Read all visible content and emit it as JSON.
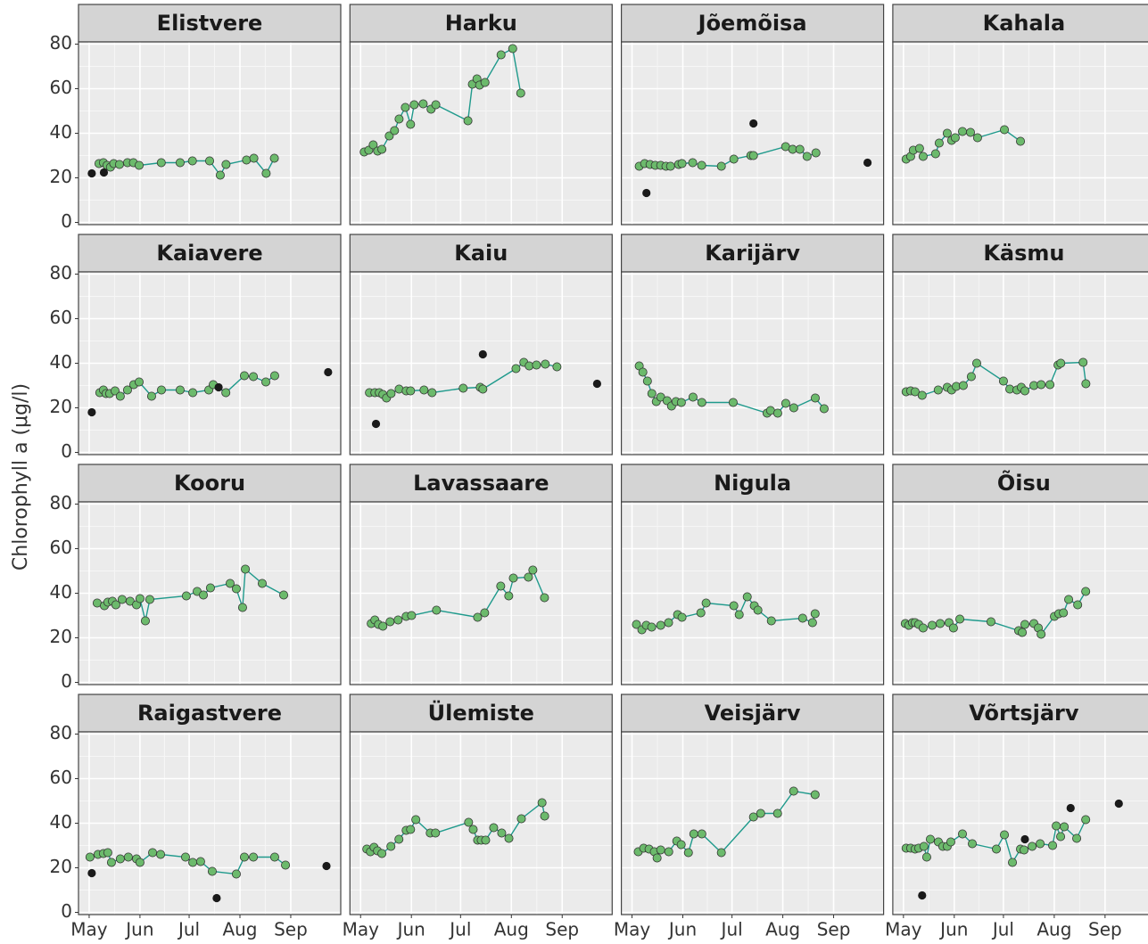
{
  "chart_data": {
    "type": "line",
    "y_label": "Chlorophyll a (μg/l)",
    "xlim": [
      114.5,
      274.5
    ],
    "xticks": [
      {
        "value": 121,
        "label": "May"
      },
      {
        "value": 152,
        "label": "Jun"
      },
      {
        "value": 182,
        "label": "Jul"
      },
      {
        "value": 213,
        "label": "Aug"
      },
      {
        "value": 244,
        "label": "Sep"
      }
    ],
    "ylim": [
      -1,
      81
    ],
    "yticks": [
      0,
      20,
      40,
      60,
      80
    ],
    "grid": true,
    "line_color": "#1f9a8c",
    "point_color": "#6cba6c",
    "outlier_color": "#1a1a1a",
    "panels": [
      {
        "title": "Elistvere",
        "x": [
          127,
          129.7,
          131.9,
          134,
          136,
          139.5,
          144.4,
          148,
          151.5,
          165,
          176.5,
          184,
          194.5,
          201,
          204.5,
          217,
          221.5,
          229,
          234
        ],
        "values": [
          26.4,
          26.8,
          25.6,
          24.8,
          26.4,
          26,
          26.8,
          26.8,
          25.6,
          26.8,
          26.8,
          27.6,
          27.6,
          21.2,
          26,
          28,
          28.8,
          22,
          28.8
        ],
        "outlier_x": [
          122.6,
          130
        ],
        "outlier_values": [
          22,
          22.4
        ]
      },
      {
        "title": "Harku",
        "x": [
          123.2,
          126,
          128.7,
          131.4,
          134,
          138.5,
          141.7,
          144.5,
          148.3,
          151.5,
          153.7,
          159.2,
          164,
          166.9,
          186.5,
          189.2,
          192,
          193.6,
          196.9,
          206.7,
          213.8,
          218.7
        ],
        "values": [
          31.6,
          32.4,
          34.8,
          32,
          32.8,
          38.8,
          41.2,
          46.4,
          51.6,
          44,
          52.8,
          53.2,
          50.8,
          52.8,
          45.6,
          62,
          64.4,
          61.6,
          62.8,
          75.2,
          78,
          58
        ],
        "outlier_x": [],
        "outlier_values": []
      },
      {
        "title": "Jõemõisa",
        "x": [
          125.4,
          128.7,
          132,
          135.2,
          138.5,
          141.7,
          144.5,
          149.4,
          151.5,
          158,
          163.5,
          175.5,
          183.1,
          193.5,
          195.1,
          214.7,
          219,
          223.4,
          227.8,
          233.2
        ],
        "values": [
          25.2,
          26.4,
          26,
          25.6,
          25.6,
          25.2,
          25.2,
          26,
          26.4,
          26.8,
          25.6,
          25.2,
          28.4,
          30,
          30,
          34,
          32.8,
          32.8,
          29.6,
          31.2
        ],
        "outlier_x": [
          129.8,
          195.1,
          264.7
        ],
        "outlier_values": [
          13.2,
          44.4,
          26.8
        ]
      },
      {
        "title": "Kahala",
        "x": [
          122.6,
          125.4,
          127,
          130.8,
          133,
          140.6,
          142.8,
          147.7,
          150.4,
          152.6,
          157,
          161.9,
          166.2,
          182.6,
          192.4
        ],
        "values": [
          28.4,
          29.6,
          32.4,
          33.2,
          29.6,
          30.8,
          35.6,
          40,
          36.8,
          38,
          40.8,
          40.4,
          38,
          41.6,
          36.4
        ],
        "outlier_x": [],
        "outlier_values": []
      },
      {
        "title": "Kaiavere",
        "x": [
          127.5,
          129.7,
          131.3,
          133.5,
          136.8,
          140,
          144.4,
          148.2,
          151.5,
          159.1,
          165.1,
          176.5,
          184.2,
          194,
          196.7,
          204.4,
          215.7,
          221.2,
          228.8,
          234.2
        ],
        "values": [
          26.8,
          28,
          26.4,
          26.4,
          27.6,
          25.2,
          28,
          30.4,
          31.6,
          25.2,
          28,
          28,
          26.8,
          28,
          30.4,
          26.8,
          34.4,
          34,
          31.6,
          34.4
        ],
        "outlier_x": [
          122.6,
          200,
          266.8
        ],
        "outlier_values": [
          18,
          29.2,
          36
        ]
      },
      {
        "title": "Kaiu",
        "x": [
          126.4,
          129.7,
          132.4,
          134.6,
          136.8,
          139.6,
          144.5,
          148.8,
          151.5,
          159.7,
          164.6,
          183.6,
          194,
          195.6,
          215.8,
          220.6,
          223.9,
          228.3,
          233.7,
          240.8
        ],
        "values": [
          26.8,
          26.8,
          26.8,
          26,
          24.4,
          26.4,
          28.4,
          27.6,
          27.6,
          28,
          26.8,
          28.8,
          29.2,
          28.4,
          37.6,
          40.4,
          38.8,
          39.2,
          39.6,
          38.4
        ],
        "outlier_x": [
          130.4,
          195.6,
          265.3
        ],
        "outlier_values": [
          12.8,
          44,
          30.8
        ]
      },
      {
        "title": "Karijärv",
        "x": [
          125.4,
          127.6,
          130.4,
          133.1,
          135.8,
          138.5,
          142.4,
          145.1,
          147.8,
          151.1,
          158.2,
          163.6,
          182.7,
          203.4,
          205.5,
          209.9,
          214.8,
          219.7,
          232.8,
          238.2
        ],
        "values": [
          38.8,
          36,
          32,
          26.4,
          22.8,
          24.8,
          23.2,
          20.8,
          22.8,
          22.4,
          24.8,
          22.4,
          22.4,
          17.6,
          18.8,
          17.6,
          22,
          20,
          24.4,
          19.6
        ],
        "outlier_x": [],
        "outlier_values": []
      },
      {
        "title": "Käsmu",
        "x": [
          122.6,
          125.4,
          128.1,
          132.4,
          142.2,
          147.7,
          150.4,
          153.2,
          157.5,
          162.4,
          165.7,
          182,
          185.9,
          190.2,
          192.9,
          195.1,
          200.6,
          205,
          210.4,
          215.3,
          217,
          230.6,
          232.3
        ],
        "values": [
          27.2,
          27.6,
          27.2,
          25.6,
          28,
          29.2,
          28,
          29.6,
          30,
          34,
          40,
          32,
          28.4,
          28,
          29.2,
          27.6,
          30,
          30.4,
          30.4,
          39.2,
          40,
          40.4,
          30.8
        ],
        "outlier_x": [],
        "outlier_values": []
      },
      {
        "title": "Kooru",
        "x": [
          125.9,
          130.3,
          132.4,
          135.2,
          137.3,
          141.1,
          146,
          149.9,
          152,
          155.3,
          158,
          180.3,
          186.9,
          190.7,
          195,
          207,
          210.8,
          214.6,
          216.3,
          226.6,
          239.7
        ],
        "values": [
          35.6,
          34.4,
          36,
          36.4,
          34.8,
          37.2,
          36.4,
          34.8,
          37.6,
          27.6,
          37.2,
          38.8,
          40.8,
          39.2,
          42.4,
          44.4,
          42,
          33.6,
          50.8,
          44.4,
          39.2
        ],
        "outlier_x": [],
        "outlier_values": []
      },
      {
        "title": "Lavassaare",
        "x": [
          127.5,
          129.7,
          131.9,
          134.6,
          139,
          143.9,
          148.8,
          152.1,
          167.3,
          192.4,
          196.7,
          206.5,
          211.4,
          214.2,
          223.4,
          226.1,
          233.2
        ],
        "values": [
          26.4,
          28,
          26,
          25.2,
          27.2,
          28,
          29.6,
          30,
          32.4,
          29.2,
          31.2,
          43.2,
          38.8,
          46.8,
          47.2,
          50.4,
          38
        ],
        "outlier_x": [],
        "outlier_values": []
      },
      {
        "title": "Nigula",
        "x": [
          123.7,
          127,
          129.7,
          133,
          138.5,
          143.3,
          148.8,
          151.5,
          163,
          166.2,
          183.1,
          186.4,
          191.3,
          195.6,
          197.8,
          206,
          225.1,
          231.1,
          232.7
        ],
        "values": [
          26,
          23.6,
          25.6,
          24.8,
          25.6,
          26.8,
          30.4,
          29.2,
          31.2,
          35.6,
          34.4,
          30.4,
          38.4,
          34.4,
          32.4,
          27.6,
          28.8,
          26.8,
          30.8
        ],
        "outlier_x": [],
        "outlier_values": []
      },
      {
        "title": "Õisu",
        "x": [
          122.1,
          124.3,
          126.5,
          128.1,
          130.3,
          133,
          138.5,
          143.4,
          148.8,
          151.5,
          155.4,
          174.4,
          191.3,
          193.5,
          195.1,
          200.6,
          203.3,
          205,
          213.1,
          215.8,
          218.6,
          221.8,
          227.3,
          232.2
        ],
        "values": [
          26.4,
          25.6,
          26.8,
          26.8,
          26,
          24.4,
          25.6,
          26.4,
          26.8,
          24.4,
          28.4,
          27.2,
          23.2,
          22.4,
          26,
          26.4,
          24.4,
          21.6,
          29.6,
          30.8,
          31.2,
          37.2,
          34.8,
          40.8
        ],
        "outlier_x": [],
        "outlier_values": []
      },
      {
        "title": "Raigastvere",
        "x": [
          121.5,
          126.4,
          129.7,
          132.4,
          134.6,
          140,
          144.9,
          149.9,
          152,
          159.7,
          164.6,
          179.8,
          184.2,
          189,
          196.1,
          210.8,
          215.7,
          221.2,
          234.2,
          240.8
        ],
        "values": [
          24.8,
          26,
          26.4,
          26.8,
          22.4,
          24,
          24.8,
          24,
          22.4,
          26.8,
          26,
          24.8,
          22.4,
          22.8,
          18.4,
          17.2,
          24.8,
          24.8,
          24.8,
          21.2
        ],
        "outlier_x": [
          122.6,
          198.8,
          265.8
        ],
        "outlier_values": [
          17.6,
          6.4,
          20.8
        ]
      },
      {
        "title": "Ülemiste",
        "x": [
          124.8,
          127,
          129.2,
          131.3,
          134,
          139.5,
          144.4,
          148.8,
          151.5,
          154.7,
          163.5,
          166.7,
          186.9,
          189.7,
          192.4,
          194.6,
          197.3,
          202.2,
          207.1,
          211.5,
          219.1,
          231.7,
          233.3
        ],
        "values": [
          28.4,
          27.2,
          29.2,
          27.6,
          26.4,
          29.6,
          32.8,
          36.8,
          37.2,
          41.6,
          35.6,
          35.6,
          40.4,
          37.2,
          32.4,
          32.4,
          32.4,
          38,
          35.6,
          33.2,
          42,
          49.2,
          43.2
        ],
        "outlier_x": [],
        "outlier_values": []
      },
      {
        "title": "Veisjärv",
        "x": [
          124.8,
          128.1,
          131.4,
          134.6,
          136.3,
          138.5,
          143.4,
          148.3,
          151,
          155.4,
          158.7,
          163.6,
          175.5,
          195.1,
          199.5,
          209.8,
          219.6,
          232.7
        ],
        "values": [
          27.2,
          28.8,
          28.4,
          27.2,
          24.4,
          28,
          27.2,
          32,
          30.4,
          26.8,
          35.2,
          35.2,
          26.8,
          42.8,
          44.4,
          44.4,
          54.4,
          52.8
        ],
        "outlier_x": [],
        "outlier_values": []
      },
      {
        "title": "Võrtsjärv",
        "x": [
          122.6,
          125.4,
          128.1,
          130.3,
          133.5,
          135.2,
          137.4,
          142.3,
          145,
          147.7,
          149.9,
          157,
          163,
          177.7,
          182.6,
          187.5,
          192.4,
          194.6,
          199.5,
          204.4,
          212,
          214.2,
          216.9,
          219.1,
          226.7,
          232.2
        ],
        "values": [
          28.8,
          28.8,
          28.4,
          28.8,
          29.6,
          24.8,
          32.8,
          31.6,
          29.6,
          29.6,
          31.6,
          35.2,
          30.8,
          28.4,
          34.8,
          22.4,
          28.4,
          28,
          29.6,
          30.8,
          30,
          38.8,
          34,
          38.4,
          33.2,
          41.6
        ],
        "outlier_x": [
          132.4,
          195.1,
          223,
          252.4
        ],
        "outlier_values": [
          7.6,
          32.8,
          46.8,
          48.8
        ]
      }
    ]
  }
}
